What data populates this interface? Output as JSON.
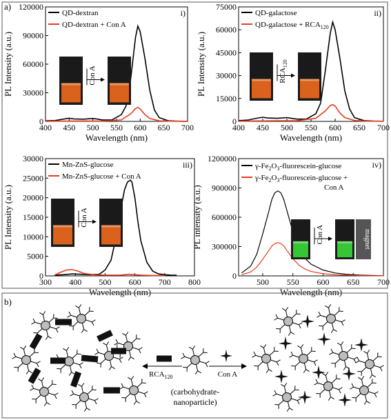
{
  "panel_a_label": "a)",
  "panel_b_label": "b)",
  "colors": {
    "black_series": "#000000",
    "red_series": "#e8391d",
    "vial_orange": "#f06a1e",
    "vial_green": "#38d838"
  },
  "chart_data": [
    {
      "id": "i",
      "type": "line",
      "tag": "i)",
      "xlabel": "Wavelength (nm)",
      "ylabel": "PL Intensity (a.u.)",
      "xlim": [
        400,
        700
      ],
      "ylim": [
        0,
        120000
      ],
      "xticks": [
        "400",
        "450",
        "500",
        "550",
        "600",
        "650",
        "700"
      ],
      "yticks": [
        "0",
        "30000",
        "60000",
        "90000",
        "120000"
      ],
      "inset_label": "Con A",
      "series": [
        {
          "name": "QD-dextran",
          "color": "#000000",
          "x": [
            400,
            420,
            440,
            450,
            460,
            480,
            500,
            510,
            520,
            540,
            560,
            570,
            580,
            590,
            595,
            600,
            610,
            620,
            630,
            640,
            660,
            680,
            700
          ],
          "y": [
            600,
            900,
            2600,
            3300,
            2600,
            2300,
            3000,
            2400,
            1500,
            1500,
            7000,
            16000,
            45000,
            88000,
            100000,
            94000,
            66000,
            33000,
            12000,
            4000,
            600,
            200,
            100
          ]
        },
        {
          "name": "QD-dextran + Con A",
          "color": "#e8391d",
          "x": [
            400,
            440,
            480,
            520,
            560,
            580,
            590,
            595,
            600,
            610,
            620,
            640,
            660,
            700
          ],
          "y": [
            100,
            300,
            400,
            300,
            1500,
            8000,
            13500,
            14500,
            13000,
            7000,
            3000,
            600,
            200,
            100
          ]
        }
      ]
    },
    {
      "id": "ii",
      "type": "line",
      "tag": "ii)",
      "xlabel": "Wavelength (nm)",
      "ylabel": "PL Intensity (a.u.)",
      "xlim": [
        400,
        700
      ],
      "ylim": [
        0,
        75000
      ],
      "xticks": [
        "400",
        "450",
        "500",
        "550",
        "600",
        "650",
        "700"
      ],
      "yticks": [
        "0",
        "15000",
        "30000",
        "45000",
        "60000",
        "75000"
      ],
      "inset_label": "RCA",
      "inset_sub": "120",
      "series": [
        {
          "name": "QD-galactose",
          "color": "#000000",
          "x": [
            400,
            420,
            440,
            450,
            460,
            480,
            500,
            510,
            520,
            540,
            560,
            570,
            580,
            590,
            595,
            600,
            610,
            620,
            630,
            640,
            660,
            680,
            700
          ],
          "y": [
            500,
            900,
            2200,
            2700,
            2200,
            2000,
            2500,
            2000,
            1500,
            1500,
            5000,
            12000,
            34000,
            58000,
            65000,
            60000,
            41000,
            20000,
            8000,
            2500,
            500,
            200,
            100
          ]
        },
        {
          "name": "QD-galactose + RCA",
          "name_sub": "120",
          "color": "#e8391d",
          "x": [
            400,
            440,
            480,
            520,
            560,
            580,
            590,
            595,
            600,
            610,
            620,
            640,
            660,
            700
          ],
          "y": [
            100,
            300,
            400,
            400,
            2000,
            7000,
            10500,
            11000,
            10000,
            5500,
            2500,
            600,
            200,
            100
          ]
        }
      ]
    },
    {
      "id": "iii",
      "type": "line",
      "tag": "iii)",
      "xlabel": "Wavelength (nm)",
      "ylabel": "PL Intensity (a.u.)",
      "xlim": [
        300,
        800
      ],
      "ylim": [
        0,
        30000
      ],
      "xticks": [
        "300",
        "400",
        "500",
        "600",
        "700",
        "800"
      ],
      "yticks": [
        "0",
        "5000",
        "10000",
        "15000",
        "20000",
        "25000",
        "30000"
      ],
      "inset_label": "Con A",
      "series": [
        {
          "name": "Mn-ZnS-glucose",
          "color": "#000000",
          "x": [
            330,
            360,
            390,
            420,
            450,
            480,
            500,
            520,
            540,
            555,
            565,
            575,
            585,
            590,
            600,
            610,
            620,
            640,
            660,
            680,
            700,
            720,
            740
          ],
          "y": [
            200,
            300,
            500,
            400,
            300,
            400,
            1500,
            4000,
            11000,
            18000,
            22000,
            24000,
            24500,
            24000,
            20000,
            14000,
            9000,
            3500,
            1200,
            500,
            300,
            200,
            150
          ]
        },
        {
          "name": "Mn-ZnS-glucose + Con A",
          "color": "#e8391d",
          "x": [
            330,
            350,
            370,
            390,
            410,
            430,
            460,
            500,
            550,
            580,
            600,
            620,
            660,
            700
          ],
          "y": [
            200,
            900,
            1500,
            1600,
            1200,
            600,
            300,
            200,
            200,
            400,
            300,
            200,
            100,
            100
          ]
        }
      ]
    },
    {
      "id": "iv",
      "type": "line",
      "tag": "iv)",
      "xlabel": "Wavelength (nm)",
      "ylabel": "PL intensity (a.u.)",
      "xlim": [
        460,
        700
      ],
      "ylim": [
        0,
        1200000
      ],
      "xticks": [
        "500",
        "550",
        "600",
        "650",
        "700"
      ],
      "yticks": [
        "0",
        "300000",
        "600000",
        "900000",
        "1200000"
      ],
      "inset_label": "Con A",
      "inset_text": "magnet",
      "series": [
        {
          "name": "γ-Fe",
          "name_sub": "2",
          "name_mid": "O",
          "name_sub2": "3",
          "name_tail": "-fluorescein-glucose",
          "color": "#000000",
          "x": [
            465,
            480,
            490,
            500,
            510,
            515,
            520,
            525,
            530,
            535,
            540,
            550,
            560,
            570,
            580,
            600,
            620,
            640,
            660,
            680,
            700
          ],
          "y": [
            30000,
            100000,
            220000,
            430000,
            660000,
            780000,
            850000,
            870000,
            850000,
            780000,
            670000,
            450000,
            280000,
            180000,
            120000,
            60000,
            30000,
            15000,
            8000,
            4000,
            2000
          ]
        },
        {
          "name": "γ-Fe",
          "name_sub": "2",
          "name_mid": "O",
          "name_sub2": "3",
          "name_tail": "-fluorescein-glucose +",
          "name_line2": "Con A",
          "color": "#e8391d",
          "x": [
            465,
            480,
            490,
            500,
            510,
            515,
            520,
            525,
            530,
            535,
            540,
            550,
            560,
            570,
            580,
            600,
            620,
            640,
            660,
            680,
            700
          ],
          "y": [
            12000,
            40000,
            90000,
            170000,
            260000,
            305000,
            330000,
            340000,
            330000,
            305000,
            260000,
            175000,
            110000,
            70000,
            45000,
            22000,
            11000,
            6000,
            3000,
            1500,
            800
          ]
        }
      ]
    }
  ],
  "scheme": {
    "center_label_line1": "(carbohydrate-",
    "center_label_line2": "nanoparticle)",
    "left_arrow_label": "RCA",
    "left_arrow_sub": "120",
    "right_arrow_label": "Con A"
  }
}
